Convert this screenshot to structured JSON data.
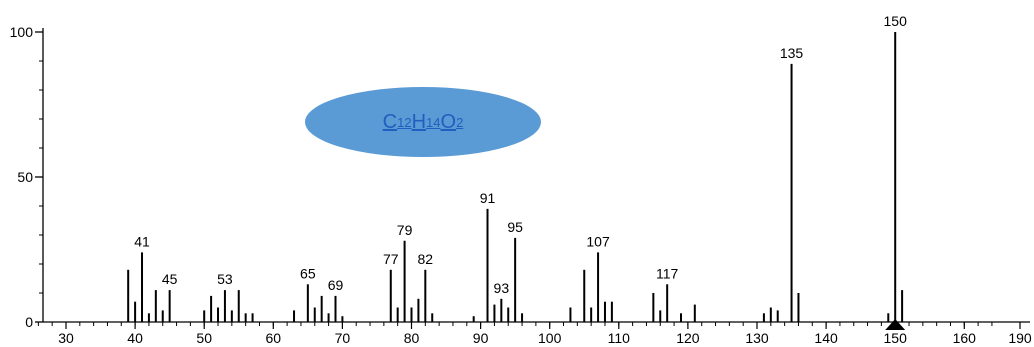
{
  "chart_data": {
    "type": "bar",
    "title": "",
    "xlabel": "",
    "ylabel": "",
    "xlim": [
      24,
      192
    ],
    "ylim": [
      0,
      100
    ],
    "xticks": [
      30,
      40,
      50,
      60,
      70,
      80,
      90,
      100,
      110,
      120,
      130,
      140,
      150,
      160,
      190
    ],
    "yticks": [
      0,
      50,
      100
    ],
    "peaks": [
      {
        "x": 39,
        "y": 18
      },
      {
        "x": 40,
        "y": 7
      },
      {
        "x": 41,
        "y": 24,
        "label": "41"
      },
      {
        "x": 42,
        "y": 3
      },
      {
        "x": 43,
        "y": 11
      },
      {
        "x": 44,
        "y": 4
      },
      {
        "x": 45,
        "y": 11,
        "label": "45"
      },
      {
        "x": 50,
        "y": 4
      },
      {
        "x": 51,
        "y": 9
      },
      {
        "x": 52,
        "y": 5
      },
      {
        "x": 53,
        "y": 11,
        "label": "53"
      },
      {
        "x": 54,
        "y": 4
      },
      {
        "x": 55,
        "y": 11
      },
      {
        "x": 56,
        "y": 3
      },
      {
        "x": 57,
        "y": 3
      },
      {
        "x": 63,
        "y": 4
      },
      {
        "x": 65,
        "y": 13,
        "label": "65"
      },
      {
        "x": 66,
        "y": 5
      },
      {
        "x": 67,
        "y": 9
      },
      {
        "x": 68,
        "y": 3
      },
      {
        "x": 69,
        "y": 9,
        "label": "69"
      },
      {
        "x": 70,
        "y": 2
      },
      {
        "x": 77,
        "y": 18,
        "label": "77"
      },
      {
        "x": 78,
        "y": 5
      },
      {
        "x": 79,
        "y": 28,
        "label": "79"
      },
      {
        "x": 80,
        "y": 5
      },
      {
        "x": 81,
        "y": 8
      },
      {
        "x": 82,
        "y": 18,
        "label": "82"
      },
      {
        "x": 83,
        "y": 3
      },
      {
        "x": 89,
        "y": 2
      },
      {
        "x": 91,
        "y": 39,
        "label": "91"
      },
      {
        "x": 92,
        "y": 6
      },
      {
        "x": 93,
        "y": 8,
        "label": "93"
      },
      {
        "x": 94,
        "y": 5
      },
      {
        "x": 95,
        "y": 29,
        "label": "95"
      },
      {
        "x": 96,
        "y": 3
      },
      {
        "x": 103,
        "y": 5
      },
      {
        "x": 105,
        "y": 18
      },
      {
        "x": 106,
        "y": 5
      },
      {
        "x": 107,
        "y": 24,
        "label": "107"
      },
      {
        "x": 108,
        "y": 7
      },
      {
        "x": 109,
        "y": 7
      },
      {
        "x": 115,
        "y": 10
      },
      {
        "x": 116,
        "y": 4
      },
      {
        "x": 117,
        "y": 13,
        "label": "117"
      },
      {
        "x": 119,
        "y": 3
      },
      {
        "x": 121,
        "y": 6
      },
      {
        "x": 131,
        "y": 3
      },
      {
        "x": 132,
        "y": 5
      },
      {
        "x": 133,
        "y": 4
      },
      {
        "x": 135,
        "y": 89,
        "label": "135"
      },
      {
        "x": 136,
        "y": 10
      },
      {
        "x": 149,
        "y": 3
      },
      {
        "x": 150,
        "y": 100,
        "label": "150"
      },
      {
        "x": 151,
        "y": 11
      }
    ],
    "marker": {
      "x": 150,
      "shape": "triangle-up"
    }
  },
  "formula": {
    "c": "C",
    "c_n": "12",
    "h": "H",
    "h_n": "14",
    "o": "O",
    "o_n": "2"
  },
  "colors": {
    "ellipse": "#5b9bd5",
    "formula_text": "#1f5fbf",
    "bars": "#000000",
    "axis": "#000000"
  }
}
